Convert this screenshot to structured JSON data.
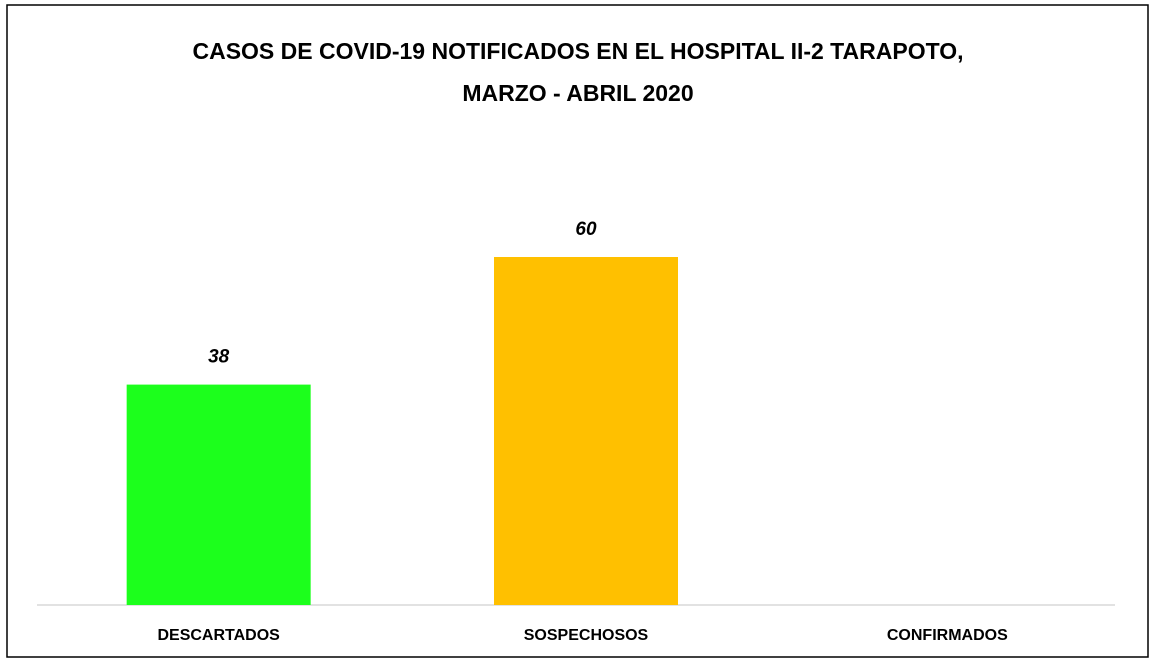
{
  "chart_data": {
    "type": "bar",
    "title": [
      "CASOS DE COVID-19  NOTIFICADOS EN EL HOSPITAL II-2 TARAPOTO,",
      "MARZO - ABRIL 2020"
    ],
    "categories": [
      "DESCARTADOS",
      "SOSPECHOSOS",
      "CONFIRMADOS"
    ],
    "values": [
      38,
      60,
      null
    ],
    "colors": [
      "#1cff1c",
      "#ffc000"
    ],
    "ylim": [
      0,
      70
    ],
    "grid": false
  }
}
